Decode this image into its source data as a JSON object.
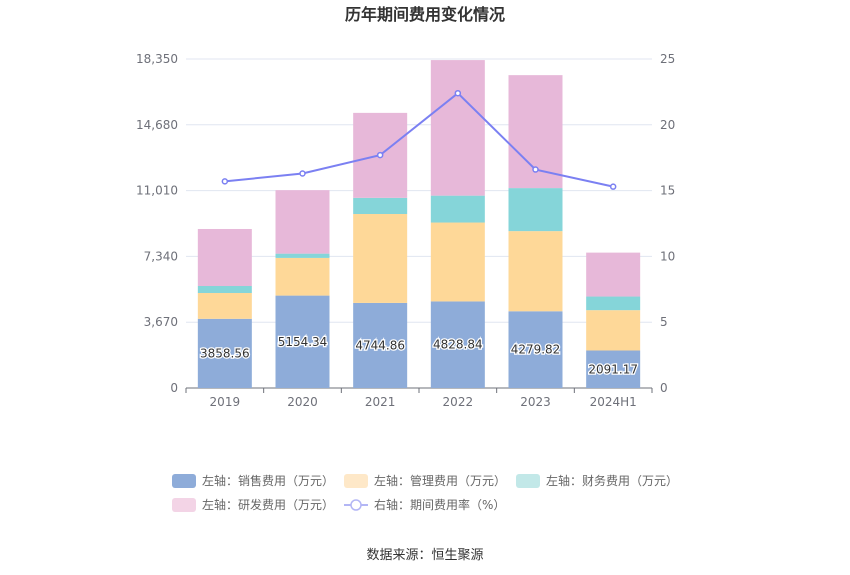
{
  "chart_data": {
    "type": "bar",
    "title": "历年期间费用变化情况",
    "categories": [
      "2019",
      "2020",
      "2021",
      "2022",
      "2023",
      "2024H1"
    ],
    "left_axis": {
      "min": 0,
      "max": 18350,
      "ticks": [
        "0",
        "3,670",
        "7,340",
        "11,010",
        "14,680",
        "18,350"
      ]
    },
    "right_axis": {
      "min": 0,
      "max": 25,
      "ticks": [
        "0",
        "5",
        "10",
        "15",
        "20",
        "25"
      ]
    },
    "stacked_series": [
      {
        "name": "左轴：销售费用（万元）",
        "color": "#8eacd9",
        "values": [
          3858.56,
          5154.34,
          4744.86,
          4828.84,
          4279.82,
          2091.17
        ],
        "labels": [
          "3858.56",
          "5154.34",
          "4744.86",
          "4828.84",
          "4279.82",
          "2091.17"
        ]
      },
      {
        "name": "左轴：管理费用（万元）",
        "color": "#fed898",
        "values": [
          1440,
          2100,
          4960,
          4400,
          4470,
          2250
        ]
      },
      {
        "name": "左轴：财务费用（万元）",
        "color": "#85d5d9",
        "values": [
          390,
          240,
          900,
          1500,
          2400,
          760
        ]
      },
      {
        "name": "左轴：研发费用（万元）",
        "color": "#e7b8d9",
        "values": [
          3180,
          3540,
          4740,
          7560,
          6300,
          2450
        ]
      }
    ],
    "line_series": {
      "name": "右轴：期间费用率（%）",
      "color": "#7b80f2",
      "values": [
        15.7,
        16.3,
        17.7,
        22.4,
        16.6,
        15.3
      ]
    },
    "legend_position": "bottom",
    "grid": true
  },
  "source": "数据来源：恒生聚源"
}
